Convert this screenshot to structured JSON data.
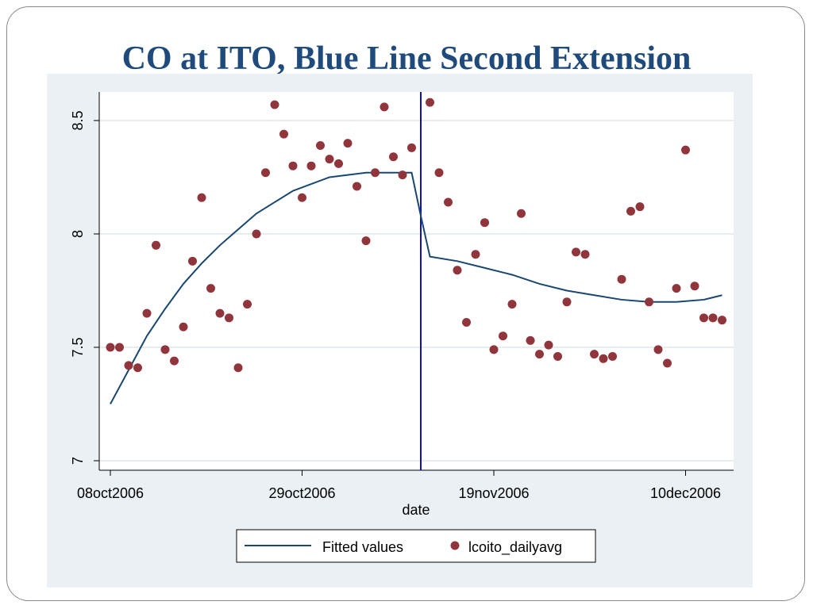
{
  "title": "CO at ITO, Blue Line Second Extension",
  "chart_data": {
    "type": "scatter",
    "title": "CO at ITO, Blue Line Second Extension",
    "xlabel": "date",
    "ylabel": "",
    "x_unit": "days since 08oct2006",
    "xlim": [
      -1,
      68
    ],
    "ylim": [
      6.96,
      8.62
    ],
    "x_ticks": [
      {
        "day": 0,
        "label": "08oct2006"
      },
      {
        "day": 21,
        "label": "29oct2006"
      },
      {
        "day": 42,
        "label": "19nov2006"
      },
      {
        "day": 63,
        "label": "10dec2006"
      }
    ],
    "y_ticks": [
      {
        "value": 7,
        "label": "7"
      },
      {
        "value": 7.5,
        "label": "7.5"
      },
      {
        "value": 8,
        "label": "8"
      },
      {
        "value": 8.5,
        "label": "8.5"
      }
    ],
    "grid": true,
    "legend_position": "bottom",
    "legend": [
      {
        "name": "Fitted values",
        "type": "line"
      },
      {
        "name": "lcoito_dailyavg",
        "type": "marker"
      }
    ],
    "cutoff_day": 34,
    "colors": {
      "fitted": "#1a476f",
      "points": "#90353b",
      "cutoff": "#1010c0",
      "plot_bg": "#eaf0f3"
    },
    "series": [
      {
        "name": "lcoito_dailyavg",
        "x": [
          0,
          1,
          2,
          3,
          4,
          5,
          6,
          7,
          8,
          9,
          10,
          11,
          12,
          13,
          14,
          15,
          16,
          17,
          18,
          19,
          20,
          21,
          22,
          23,
          24,
          25,
          26,
          27,
          28,
          29,
          30,
          31,
          32,
          33,
          35,
          36,
          37,
          38,
          39,
          40,
          41,
          42,
          43,
          44,
          45,
          46,
          47,
          48,
          49,
          50,
          51,
          52,
          53,
          54,
          55,
          56,
          57,
          58,
          59,
          60,
          61,
          62,
          63,
          64,
          65,
          66,
          67
        ],
        "y": [
          7.5,
          7.5,
          7.42,
          7.41,
          7.65,
          7.95,
          7.49,
          7.44,
          7.59,
          7.88,
          8.16,
          7.76,
          7.65,
          7.63,
          7.41,
          7.69,
          8.0,
          8.27,
          8.57,
          8.44,
          8.3,
          8.16,
          8.3,
          8.39,
          8.33,
          8.31,
          8.4,
          8.21,
          7.97,
          8.27,
          8.56,
          8.34,
          8.26,
          8.38,
          8.58,
          8.27,
          8.14,
          7.84,
          7.61,
          7.91,
          8.05,
          7.49,
          7.55,
          7.69,
          8.09,
          7.53,
          7.47,
          7.51,
          7.46,
          7.7,
          7.92,
          7.91,
          7.47,
          7.45,
          7.46,
          7.8,
          8.1,
          8.12,
          7.7,
          7.49,
          7.43,
          7.76,
          8.37,
          7.77,
          7.63,
          7.63,
          7.62
        ]
      },
      {
        "name": "Fitted values",
        "x": [
          0,
          2,
          4,
          6,
          8,
          10,
          12,
          14,
          16,
          18,
          20,
          22,
          24,
          26,
          28,
          30,
          33,
          34,
          35,
          38,
          41,
          44,
          47,
          50,
          53,
          56,
          59,
          62,
          65,
          67
        ],
        "y": [
          7.25,
          7.4,
          7.55,
          7.67,
          7.78,
          7.87,
          7.95,
          8.02,
          8.09,
          8.14,
          8.19,
          8.22,
          8.25,
          8.26,
          8.27,
          8.27,
          8.27,
          8.08,
          7.9,
          7.88,
          7.85,
          7.82,
          7.78,
          7.75,
          7.73,
          7.71,
          7.7,
          7.7,
          7.71,
          7.73
        ]
      }
    ]
  }
}
